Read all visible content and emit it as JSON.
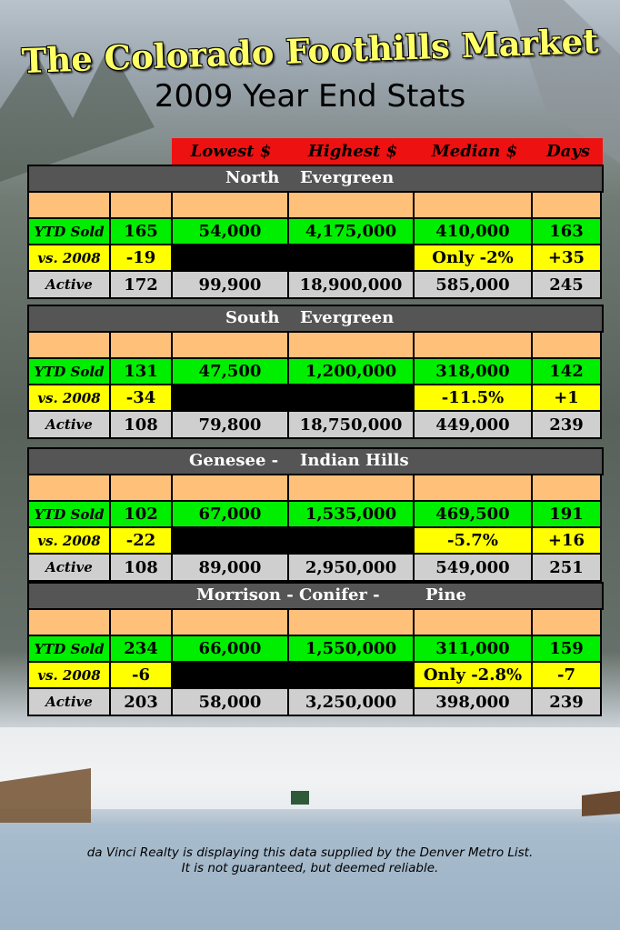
{
  "title": "The Colorado Foothills Market",
  "subtitle": "2009 Year End Stats",
  "headers": [
    "Lowest $",
    "Highest $",
    "Median $",
    "Days"
  ],
  "sections": [
    {
      "name_a": "North",
      "name_b": "Evergreen",
      "ytd": {
        "label": "YTD Sold",
        "count": "165",
        "low": "54,000",
        "high": "4,175,000",
        "median": "410,000",
        "days": "163"
      },
      "vs": {
        "label": "vs. 2008",
        "count": "-19",
        "median": "Only -2%",
        "days": "+35"
      },
      "active": {
        "label": "Active",
        "count": "172",
        "low": "99,900",
        "high": "18,900,000",
        "median": "585,000",
        "days": "245"
      }
    },
    {
      "name_a": "South",
      "name_b": "Evergreen",
      "ytd": {
        "label": "YTD Sold",
        "count": "131",
        "low": "47,500",
        "high": "1,200,000",
        "median": "318,000",
        "days": "142"
      },
      "vs": {
        "label": "vs. 2008",
        "count": "-34",
        "median": "-11.5%",
        "days": "+1"
      },
      "active": {
        "label": "Active",
        "count": "108",
        "low": "79,800",
        "high": "18,750,000",
        "median": "449,000",
        "days": "239"
      }
    },
    {
      "name_a": "Genesee  -",
      "name_b": "Indian Hills",
      "ytd": {
        "label": "YTD Sold",
        "count": "102",
        "low": "67,000",
        "high": "1,535,000",
        "median": "469,500",
        "days": "191"
      },
      "vs": {
        "label": "vs. 2008",
        "count": "-22",
        "median": "-5.7%",
        "days": "+16"
      },
      "active": {
        "label": "Active",
        "count": "108",
        "low": "89,000",
        "high": "2,950,000",
        "median": "549,000",
        "days": "251"
      }
    },
    {
      "name_a": "Morrison   -  Conifer  -",
      "name_b": "Pine",
      "ytd": {
        "label": "YTD Sold",
        "count": "234",
        "low": "66,000",
        "high": "1,550,000",
        "median": "311,000",
        "days": "159"
      },
      "vs": {
        "label": "vs. 2008",
        "count": "-6",
        "median": "Only -2.8%",
        "days": "-7"
      },
      "active": {
        "label": "Active",
        "count": "203",
        "low": "58,000",
        "high": "3,250,000",
        "median": "398,000",
        "days": "239"
      }
    }
  ],
  "footer": {
    "line1": "da Vinci Realty is displaying this data supplied by the Denver Metro List.",
    "line2": "It is not guaranteed, but deemed reliable."
  }
}
